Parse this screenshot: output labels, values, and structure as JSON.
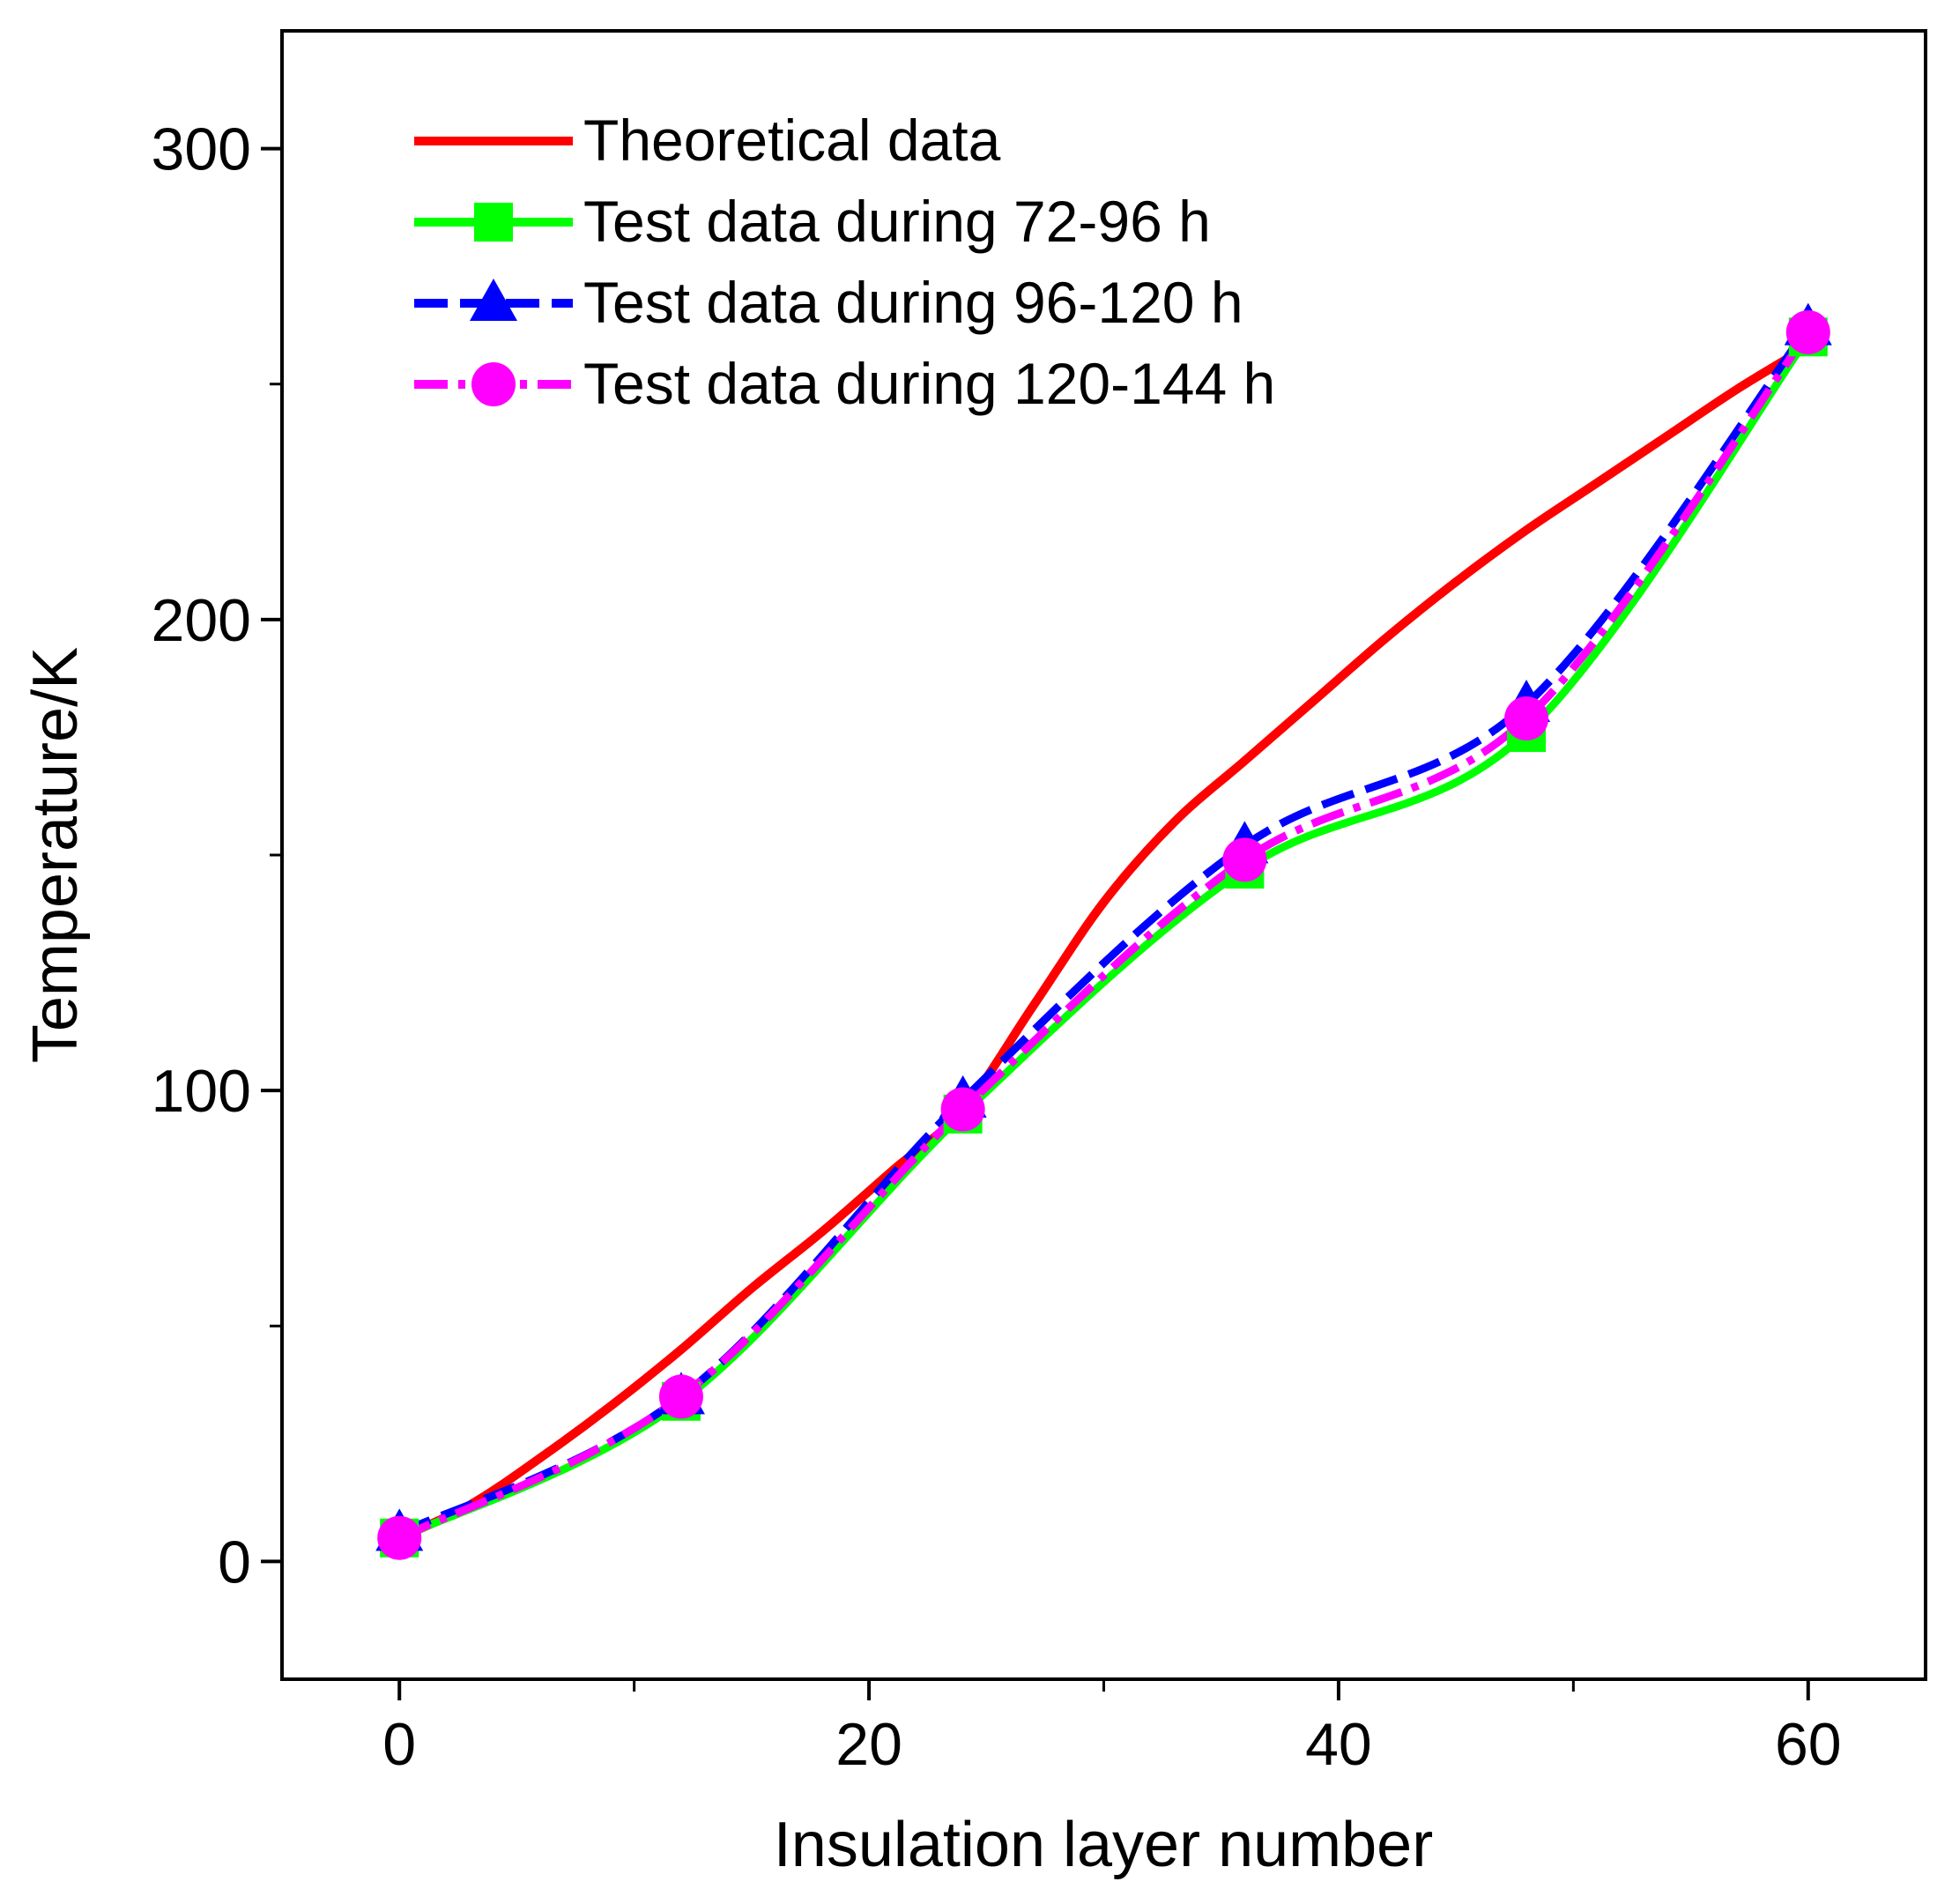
{
  "chart_data": {
    "type": "line",
    "title": "",
    "xlabel": "Insulation layer number",
    "ylabel": "Temperature/K",
    "xlim": [
      -5,
      65
    ],
    "ylim": [
      -25,
      325
    ],
    "xticks": [
      0,
      20,
      40,
      60
    ],
    "xtick_labels": [
      "0",
      "20",
      "40",
      "60"
    ],
    "xminor": [
      10,
      30,
      50
    ],
    "yticks": [
      0,
      100,
      200,
      300
    ],
    "ytick_labels": [
      "0",
      "100",
      "200",
      "300"
    ],
    "yminor": [
      50,
      150,
      250
    ],
    "grid": false,
    "legend_position": "top-left",
    "series": [
      {
        "name": "Theoretical data",
        "color": "#ff0000",
        "style": "solid",
        "marker": "none",
        "x": [
          0,
          3,
          6,
          9,
          12,
          15,
          18,
          21,
          24,
          27,
          30,
          33,
          36,
          39,
          42,
          45,
          48,
          51,
          54,
          57,
          60
        ],
        "y": [
          5,
          12,
          22,
          33,
          45,
          58,
          70,
          83,
          96,
          118,
          140,
          157,
          170,
          183,
          196,
          208,
          219,
          229,
          239,
          249,
          258
        ]
      },
      {
        "name": "Test data during 72-96 h",
        "color": "#00ff00",
        "style": "solid",
        "marker": "square",
        "x": [
          0,
          12,
          24,
          36,
          48,
          60
        ],
        "y": [
          5,
          34,
          95,
          147,
          176,
          260
        ]
      },
      {
        "name": "Test data during 96-120 h",
        "color": "#0000ff",
        "style": "dash",
        "marker": "triangle",
        "x": [
          0,
          12,
          24,
          36,
          48,
          60
        ],
        "y": [
          6,
          35,
          98,
          152,
          182,
          262
        ]
      },
      {
        "name": "Test data during 120-144 h",
        "color": "#ff00ff",
        "style": "dashdot",
        "marker": "circle",
        "x": [
          0,
          12,
          24,
          36,
          48,
          60
        ],
        "y": [
          5,
          35,
          96,
          149,
          179,
          261
        ]
      }
    ]
  }
}
